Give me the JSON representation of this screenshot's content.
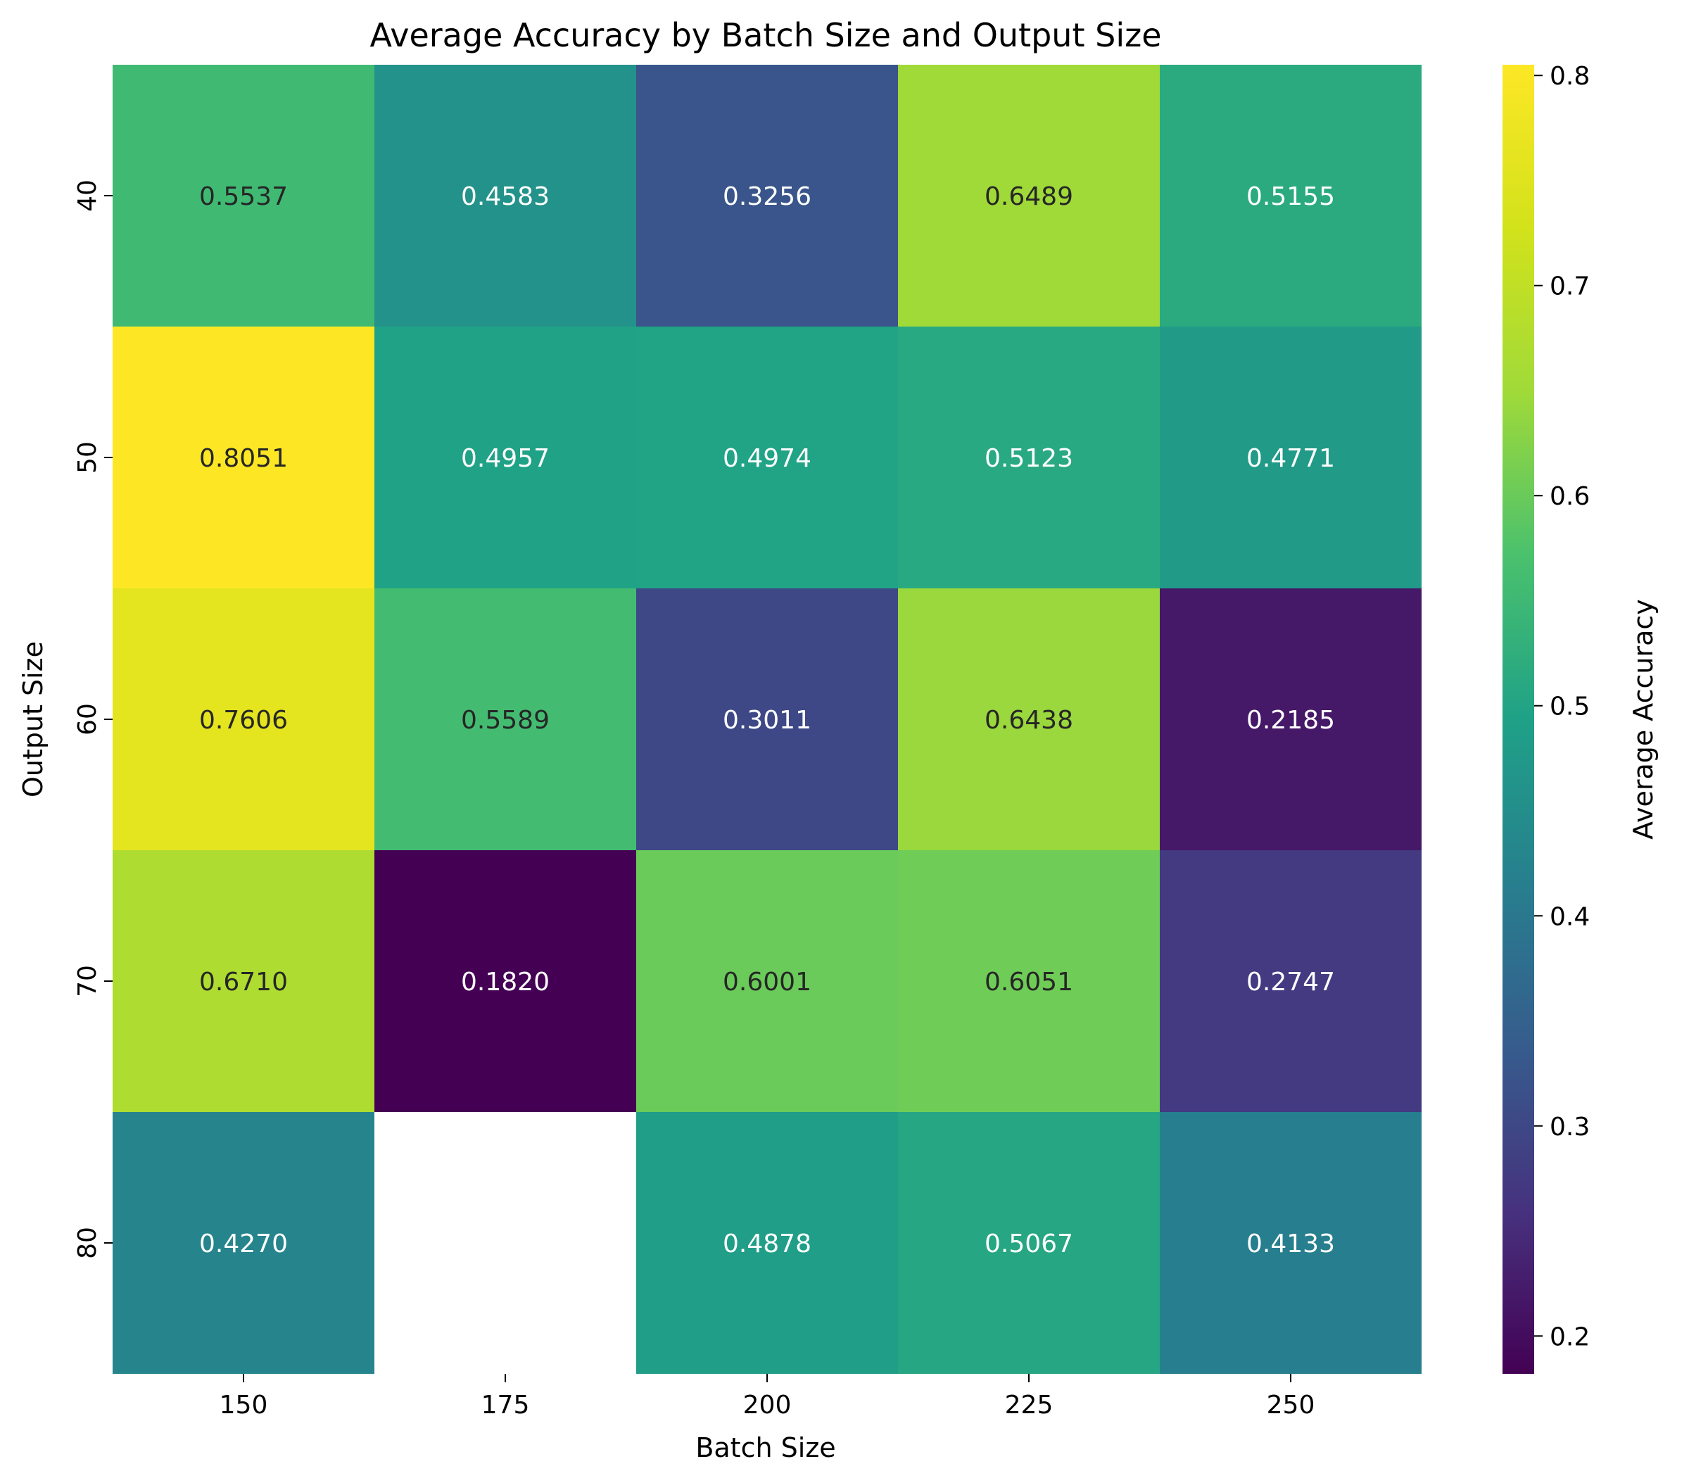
{
  "chart_data": {
    "type": "heatmap",
    "title": "Average Accuracy by Batch Size and Output Size",
    "xlabel": "Batch Size",
    "ylabel": "Output Size",
    "x_categories": [
      "150",
      "175",
      "200",
      "225",
      "250"
    ],
    "y_categories": [
      "40",
      "50",
      "60",
      "70",
      "80"
    ],
    "values": [
      [
        0.5537,
        0.4583,
        0.3256,
        0.6489,
        0.5155
      ],
      [
        0.8051,
        0.4957,
        0.4974,
        0.5123,
        0.4771
      ],
      [
        0.7606,
        0.5589,
        0.3011,
        0.6438,
        0.2185
      ],
      [
        0.671,
        0.182,
        0.6001,
        0.6051,
        0.2747
      ],
      [
        0.427,
        null,
        0.4878,
        0.5067,
        0.4133
      ]
    ],
    "value_format": "4 decimals",
    "colormap": "viridis",
    "colorbar": {
      "label": "Average Accuracy",
      "range": [
        0.182,
        0.8051
      ],
      "ticks": [
        "0.2",
        "0.3",
        "0.4",
        "0.5",
        "0.6",
        "0.7",
        "0.8"
      ]
    },
    "grid": false,
    "legend": "none"
  }
}
